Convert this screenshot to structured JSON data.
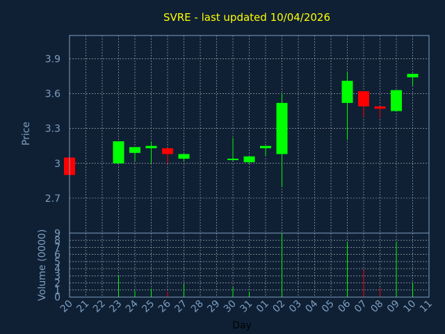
{
  "colors": {
    "background": "#0f2035",
    "plot_border": "#7f9fbf",
    "grid": "#c0c0c0",
    "text": "#7f9fbf",
    "title": "#ffff00",
    "up": "#00ff00",
    "down": "#ff0000"
  },
  "chart_data": {
    "type": "candlestick",
    "title": "SVRE - last updated 10/04/2026",
    "xlabel": "Day",
    "price_panel": {
      "ylabel": "Price",
      "ylim": [
        2.4,
        4.1
      ],
      "yticks": [
        "2.7",
        "3",
        "3.3",
        "3.6",
        "3.9"
      ],
      "grid": true
    },
    "volume_panel": {
      "ylabel": "Volume (0000)",
      "ylim": [
        0,
        9
      ],
      "yticks": [
        "0",
        "1",
        "2",
        "3",
        "4",
        "5",
        "6",
        "7",
        "8",
        "9"
      ],
      "grid": true
    },
    "days": [
      "20",
      "21",
      "22",
      "23",
      "24",
      "25",
      "26",
      "27",
      "28",
      "29",
      "30",
      "31",
      "01",
      "02",
      "03",
      "04",
      "05",
      "06",
      "07",
      "08",
      "09",
      "10",
      "11"
    ],
    "candles": [
      {
        "day": "20",
        "open": 3.05,
        "close": 2.9,
        "high": 3.05,
        "low": 2.9
      },
      {
        "day": "23",
        "open": 3.0,
        "close": 3.19,
        "high": 3.19,
        "low": 3.0
      },
      {
        "day": "24",
        "open": 3.09,
        "close": 3.14,
        "high": 3.14,
        "low": 3.02
      },
      {
        "day": "25",
        "open": 3.13,
        "close": 3.15,
        "high": 3.19,
        "low": 3.0
      },
      {
        "day": "26",
        "open": 3.13,
        "close": 3.08,
        "high": 3.13,
        "low": 3.0
      },
      {
        "day": "27",
        "open": 3.04,
        "close": 3.08,
        "high": 3.08,
        "low": 3.02
      },
      {
        "day": "30",
        "open": 3.03,
        "close": 3.04,
        "high": 3.22,
        "low": 3.02
      },
      {
        "day": "31",
        "open": 3.01,
        "close": 3.06,
        "high": 3.06,
        "low": 3.0
      },
      {
        "day": "01",
        "open": 3.13,
        "close": 3.15,
        "high": 3.15,
        "low": 3.07
      },
      {
        "day": "02",
        "open": 3.08,
        "close": 3.52,
        "high": 3.6,
        "low": 2.8
      },
      {
        "day": "06",
        "open": 3.52,
        "close": 3.71,
        "high": 3.79,
        "low": 3.2
      },
      {
        "day": "07",
        "open": 3.62,
        "close": 3.49,
        "high": 3.62,
        "low": 3.4
      },
      {
        "day": "08",
        "open": 3.49,
        "close": 3.47,
        "high": 3.49,
        "low": 3.39
      },
      {
        "day": "09",
        "open": 3.45,
        "close": 3.63,
        "high": 3.63,
        "low": 3.45
      },
      {
        "day": "10",
        "open": 3.74,
        "close": 3.77,
        "high": 3.77,
        "low": 3.67
      }
    ],
    "volume": [
      {
        "day": "23",
        "value": 3.0,
        "dir": "up"
      },
      {
        "day": "24",
        "value": 0.9,
        "dir": "up"
      },
      {
        "day": "25",
        "value": 1.2,
        "dir": "up"
      },
      {
        "day": "26",
        "value": 0.8,
        "dir": "down"
      },
      {
        "day": "27",
        "value": 1.8,
        "dir": "up"
      },
      {
        "day": "30",
        "value": 1.4,
        "dir": "up"
      },
      {
        "day": "31",
        "value": 0.8,
        "dir": "up"
      },
      {
        "day": "02",
        "value": 9.0,
        "dir": "up"
      },
      {
        "day": "06",
        "value": 7.8,
        "dir": "up"
      },
      {
        "day": "07",
        "value": 3.8,
        "dir": "down"
      },
      {
        "day": "08",
        "value": 1.3,
        "dir": "down"
      },
      {
        "day": "09",
        "value": 7.8,
        "dir": "up"
      },
      {
        "day": "10",
        "value": 2.0,
        "dir": "up"
      }
    ]
  }
}
